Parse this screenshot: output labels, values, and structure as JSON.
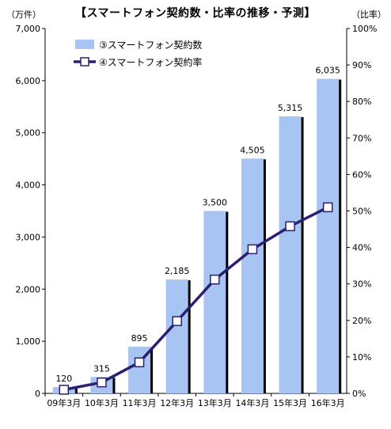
{
  "header": {
    "title": "【スマートフォン契約数・比率の推移・予測】",
    "left_unit": "（万件）",
    "right_unit": "（比率）"
  },
  "colors": {
    "bar": "#a8c4f2",
    "bar_shadow": "#000000",
    "line": "#2a1f73",
    "marker_fill": "#ffffff"
  },
  "chart_data": {
    "type": "bar",
    "title": "【スマートフォン契約数・比率の推移・予測】",
    "categories": [
      "09年3月",
      "10年3月",
      "11年3月",
      "12年3月",
      "13年3月",
      "14年3月",
      "15年3月",
      "16年3月"
    ],
    "series": [
      {
        "name": "③スマートフォン契約数",
        "type": "bar",
        "axis": "left",
        "values": [
          120,
          315,
          895,
          2185,
          3500,
          4505,
          5315,
          6035
        ]
      },
      {
        "name": "④スマートフォン契約率",
        "type": "line",
        "axis": "right",
        "marker": "square",
        "values": [
          1.0,
          3.0,
          8.5,
          19.8,
          31.2,
          39.5,
          45.8,
          51.0
        ]
      }
    ],
    "data_labels": [
      "120",
      "315",
      "895",
      "2,185",
      "3,500",
      "4,505",
      "5,315",
      "6,035"
    ],
    "y_left": {
      "range": [
        0,
        7000
      ],
      "ticks": [
        "0",
        "1,000",
        "2,000",
        "3,000",
        "4,000",
        "5,000",
        "6,000",
        "7,000"
      ],
      "unit": "（万件）"
    },
    "y_right": {
      "range": [
        0,
        100
      ],
      "ticks": [
        "0%",
        "10%",
        "20%",
        "30%",
        "40%",
        "50%",
        "60%",
        "70%",
        "80%",
        "90%",
        "100%"
      ],
      "unit": "（比率）"
    },
    "grid": false,
    "legend_position": "top-left",
    "legend": [
      "③スマートフォン契約数",
      "④スマートフォン契約率"
    ]
  }
}
